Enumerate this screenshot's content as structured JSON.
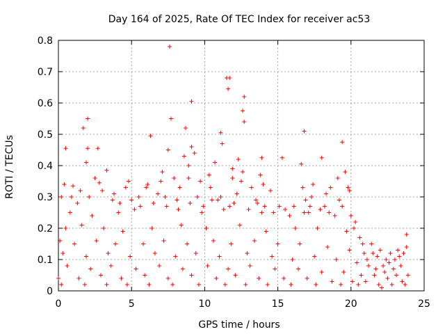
{
  "chart_data": {
    "type": "scatter",
    "title": "Day 164 of 2025, Rate Of TEC Index for receiver ac53",
    "xlabel": "GPS time / hours",
    "ylabel": "ROTI / TECUs",
    "xlim": [
      0,
      25
    ],
    "ylim": [
      0,
      0.8
    ],
    "xticks": [
      "0",
      "5",
      "10",
      "15",
      "20",
      "25"
    ],
    "yticks": [
      "0",
      "0.1",
      "0.2",
      "0.3",
      "0.4",
      "0.5",
      "0.6",
      "0.7",
      "0.8"
    ],
    "grid": true,
    "marker": "+",
    "series_color": "#ff0000",
    "series": [
      {
        "points": [
          [
            7.6,
            0.78
          ],
          [
            11.5,
            0.68
          ],
          [
            11.7,
            0.68
          ],
          [
            11.6,
            0.645
          ],
          [
            12.7,
            0.62
          ],
          [
            9.1,
            0.605
          ],
          [
            12.6,
            0.575
          ],
          [
            12.7,
            0.54
          ],
          [
            2.0,
            0.55
          ],
          [
            1.7,
            0.52
          ],
          [
            7.7,
            0.55
          ],
          [
            8.7,
            0.52
          ],
          [
            16.8,
            0.51
          ],
          [
            11.1,
            0.505
          ],
          [
            6.3,
            0.495
          ],
          [
            19.4,
            0.475
          ],
          [
            11.2,
            0.47
          ],
          [
            2.0,
            0.455
          ],
          [
            2.7,
            0.455
          ],
          [
            0.5,
            0.455
          ],
          [
            7.5,
            0.45
          ],
          [
            9.1,
            0.46
          ],
          [
            18.0,
            0.425
          ],
          [
            15.3,
            0.425
          ],
          [
            13.9,
            0.425
          ],
          [
            16.6,
            0.405
          ],
          [
            1.9,
            0.41
          ],
          [
            3.3,
            0.385
          ],
          [
            19.6,
            0.38
          ],
          [
            7.1,
            0.38
          ],
          [
            11.9,
            0.39
          ],
          [
            12.6,
            0.38
          ],
          [
            8.9,
            0.36
          ],
          [
            0.4,
            0.34
          ],
          [
            1.0,
            0.335
          ],
          [
            2.8,
            0.345
          ],
          [
            4.6,
            0.33
          ],
          [
            6.1,
            0.34
          ],
          [
            10.4,
            0.33
          ],
          [
            13.2,
            0.33
          ],
          [
            14.5,
            0.32
          ],
          [
            17.4,
            0.34
          ],
          [
            18.6,
            0.33
          ],
          [
            19.9,
            0.32
          ],
          [
            0.2,
            0.3
          ],
          [
            1.3,
            0.28
          ],
          [
            3.7,
            0.29
          ],
          [
            5.5,
            0.3
          ],
          [
            6.8,
            0.31
          ],
          [
            8.1,
            0.29
          ],
          [
            9.5,
            0.3
          ],
          [
            10.9,
            0.29
          ],
          [
            12.2,
            0.31
          ],
          [
            13.6,
            0.28
          ],
          [
            15.1,
            0.27
          ],
          [
            16.9,
            0.29
          ],
          [
            18.2,
            0.27
          ],
          [
            19.2,
            0.29
          ],
          [
            0.8,
            0.25
          ],
          [
            2.3,
            0.24
          ],
          [
            4.1,
            0.25
          ],
          [
            5.2,
            0.26
          ],
          [
            7.4,
            0.27
          ],
          [
            9.8,
            0.25
          ],
          [
            11.3,
            0.26
          ],
          [
            13.9,
            0.25
          ],
          [
            15.8,
            0.24
          ],
          [
            17.1,
            0.25
          ],
          [
            18.9,
            0.24
          ],
          [
            20.3,
            0.22
          ],
          [
            0.5,
            0.2
          ],
          [
            1.6,
            0.21
          ],
          [
            3.1,
            0.2
          ],
          [
            4.4,
            0.19
          ],
          [
            6.4,
            0.2
          ],
          [
            8.4,
            0.21
          ],
          [
            10.1,
            0.2
          ],
          [
            12.4,
            0.21
          ],
          [
            14.2,
            0.19
          ],
          [
            16.2,
            0.2
          ],
          [
            17.7,
            0.2
          ],
          [
            19.7,
            0.19
          ],
          [
            20.6,
            0.17
          ],
          [
            21.4,
            0.15
          ],
          [
            22.0,
            0.13
          ],
          [
            22.7,
            0.12
          ],
          [
            23.2,
            0.13
          ],
          [
            23.8,
            0.18
          ],
          [
            0.1,
            0.16
          ],
          [
            1.1,
            0.15
          ],
          [
            2.6,
            0.16
          ],
          [
            3.9,
            0.15
          ],
          [
            5.8,
            0.15
          ],
          [
            7.2,
            0.16
          ],
          [
            8.8,
            0.15
          ],
          [
            10.6,
            0.16
          ],
          [
            11.8,
            0.15
          ],
          [
            13.4,
            0.16
          ],
          [
            15.0,
            0.15
          ],
          [
            16.5,
            0.15
          ],
          [
            18.4,
            0.14
          ],
          [
            19.9,
            0.13
          ],
          [
            20.9,
            0.12
          ],
          [
            21.8,
            0.11
          ],
          [
            22.4,
            0.1
          ],
          [
            23.0,
            0.1
          ],
          [
            23.6,
            0.12
          ],
          [
            0.3,
            0.12
          ],
          [
            1.9,
            0.11
          ],
          [
            3.4,
            0.12
          ],
          [
            4.9,
            0.11
          ],
          [
            6.6,
            0.12
          ],
          [
            8.0,
            0.11
          ],
          [
            9.4,
            0.12
          ],
          [
            11.0,
            0.11
          ],
          [
            12.9,
            0.12
          ],
          [
            14.6,
            0.11
          ],
          [
            16.0,
            0.1
          ],
          [
            17.5,
            0.11
          ],
          [
            19.0,
            0.1
          ],
          [
            20.4,
            0.09
          ],
          [
            21.2,
            0.08
          ],
          [
            22.2,
            0.08
          ],
          [
            22.9,
            0.07
          ],
          [
            23.4,
            0.08
          ],
          [
            0.6,
            0.08
          ],
          [
            2.2,
            0.07
          ],
          [
            3.6,
            0.08
          ],
          [
            5.3,
            0.07
          ],
          [
            6.9,
            0.08
          ],
          [
            8.5,
            0.07
          ],
          [
            10.2,
            0.08
          ],
          [
            11.6,
            0.07
          ],
          [
            13.1,
            0.08
          ],
          [
            14.8,
            0.07
          ],
          [
            16.4,
            0.07
          ],
          [
            18.0,
            0.06
          ],
          [
            19.5,
            0.06
          ],
          [
            20.7,
            0.05
          ],
          [
            21.6,
            0.05
          ],
          [
            22.5,
            0.04
          ],
          [
            23.1,
            0.05
          ],
          [
            23.9,
            0.05
          ],
          [
            0.0,
            0.04
          ],
          [
            1.4,
            0.04
          ],
          [
            2.9,
            0.05
          ],
          [
            4.3,
            0.04
          ],
          [
            5.9,
            0.05
          ],
          [
            7.5,
            0.04
          ],
          [
            9.1,
            0.05
          ],
          [
            10.8,
            0.04
          ],
          [
            12.1,
            0.05
          ],
          [
            13.7,
            0.04
          ],
          [
            15.4,
            0.04
          ],
          [
            17.0,
            0.04
          ],
          [
            18.7,
            0.03
          ],
          [
            20.1,
            0.03
          ],
          [
            21.0,
            0.03
          ],
          [
            21.9,
            0.02
          ],
          [
            22.8,
            0.02
          ],
          [
            23.5,
            0.03
          ],
          [
            0.2,
            0.02
          ],
          [
            1.8,
            0.02
          ],
          [
            3.3,
            0.02
          ],
          [
            4.7,
            0.02
          ],
          [
            6.2,
            0.02
          ],
          [
            7.8,
            0.02
          ],
          [
            9.6,
            0.02
          ],
          [
            11.4,
            0.02
          ],
          [
            12.8,
            0.02
          ],
          [
            14.3,
            0.02
          ],
          [
            15.9,
            0.02
          ],
          [
            17.6,
            0.02
          ],
          [
            19.3,
            0.02
          ],
          [
            20.5,
            0.02
          ],
          [
            22.1,
            0.01
          ],
          [
            23.7,
            0.02
          ],
          [
            8.6,
            0.43
          ],
          [
            8.9,
            0.4
          ],
          [
            9.3,
            0.44
          ],
          [
            10.7,
            0.41
          ],
          [
            11.9,
            0.36
          ],
          [
            12.3,
            0.42
          ],
          [
            7.9,
            0.36
          ],
          [
            8.3,
            0.33
          ],
          [
            9.7,
            0.35
          ],
          [
            10.3,
            0.37
          ],
          [
            12.5,
            0.35
          ],
          [
            2.5,
            0.36
          ],
          [
            3.0,
            0.32
          ],
          [
            4.8,
            0.35
          ],
          [
            6.0,
            0.33
          ],
          [
            7.0,
            0.35
          ],
          [
            13.8,
            0.37
          ],
          [
            14.0,
            0.34
          ],
          [
            16.7,
            0.33
          ],
          [
            17.3,
            0.3
          ],
          [
            18.3,
            0.31
          ],
          [
            19.1,
            0.36
          ],
          [
            19.8,
            0.33
          ],
          [
            0.9,
            0.3
          ],
          [
            1.5,
            0.32
          ],
          [
            2.1,
            0.3
          ],
          [
            3.8,
            0.31
          ],
          [
            4.2,
            0.28
          ],
          [
            5.0,
            0.29
          ],
          [
            5.6,
            0.27
          ],
          [
            6.5,
            0.28
          ],
          [
            7.3,
            0.3
          ],
          [
            8.2,
            0.26
          ],
          [
            9.0,
            0.28
          ],
          [
            9.9,
            0.27
          ],
          [
            10.5,
            0.29
          ],
          [
            11.1,
            0.3
          ],
          [
            11.7,
            0.27
          ],
          [
            12.0,
            0.28
          ],
          [
            13.0,
            0.26
          ],
          [
            13.5,
            0.29
          ],
          [
            14.1,
            0.27
          ],
          [
            14.7,
            0.25
          ],
          [
            15.5,
            0.26
          ],
          [
            16.1,
            0.27
          ],
          [
            16.8,
            0.25
          ],
          [
            17.2,
            0.27
          ],
          [
            17.9,
            0.26
          ],
          [
            18.5,
            0.25
          ],
          [
            19.4,
            0.27
          ],
          [
            20.0,
            0.24
          ],
          [
            20.2,
            0.2
          ],
          [
            20.8,
            0.15
          ],
          [
            21.1,
            0.1
          ],
          [
            21.5,
            0.12
          ],
          [
            21.7,
            0.07
          ],
          [
            22.3,
            0.06
          ],
          [
            22.6,
            0.09
          ],
          [
            23.3,
            0.11
          ],
          [
            23.8,
            0.14
          ]
        ]
      }
    ]
  }
}
